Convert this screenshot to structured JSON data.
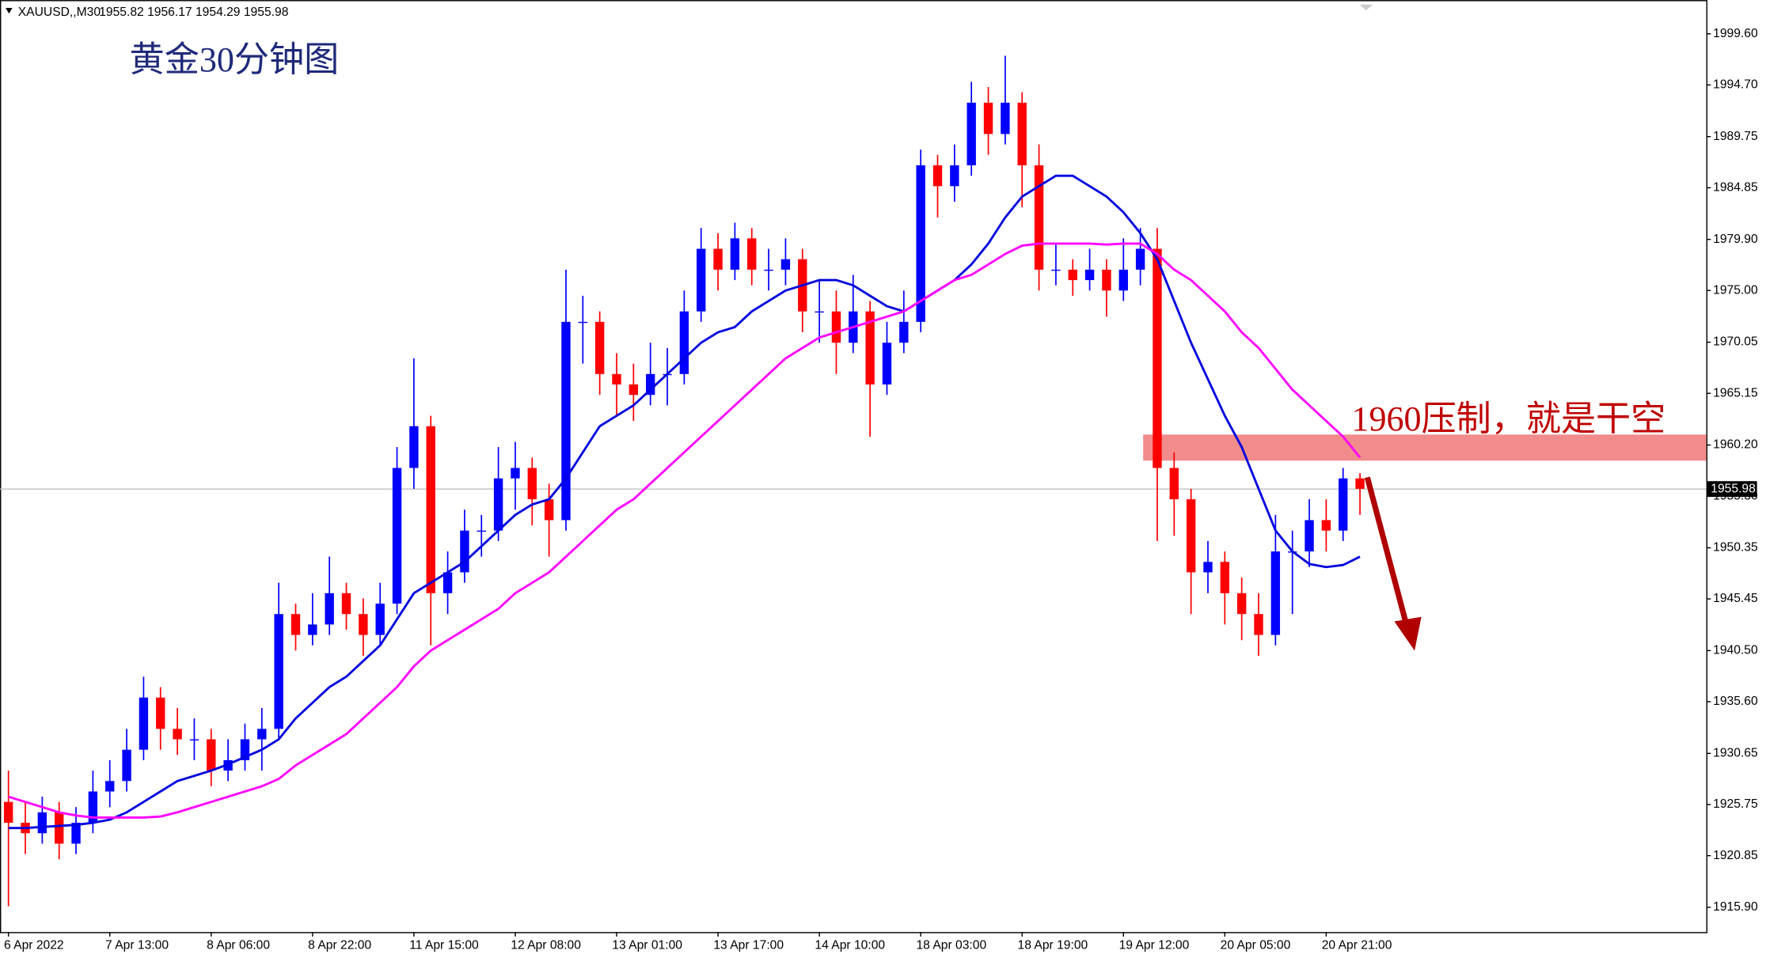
{
  "header": {
    "symbol": "XAUUSD,,M30",
    "quote": "1955.82 1956.17 1954.29 1955.98"
  },
  "chart_data": {
    "type": "candlestick",
    "title": "黄金30分钟图",
    "annotation": "1960压制，就是干空",
    "up_color": "#0000ff",
    "down_color": "#ff0000",
    "current_price": 1955.98,
    "zone": [
      1958.7,
      1961.2
    ],
    "zone_color": "#f28b8b",
    "ylim": [
      1913.53,
      2002.51
    ],
    "yticks": [
      {
        "value": 1999.6,
        "label": "1999.60"
      },
      {
        "value": 1994.7,
        "label": "1994.70"
      },
      1989.75,
      1984.85,
      {
        "value": 1979.9,
        "label": "1979.90"
      },
      {
        "value": 1975,
        "label": "1975.00"
      },
      1970.05,
      1965.15,
      {
        "value": 1960.2,
        "label": "1960.20"
      },
      {
        "value": 1955.3,
        "label": "1955.30"
      },
      1950.35,
      1945.45,
      {
        "value": 1940.5,
        "label": "1940.50"
      },
      {
        "value": 1935.6,
        "label": "1935.60"
      },
      1930.65,
      1925.75,
      1920.85,
      {
        "value": 1915.9,
        "label": "1915.90"
      }
    ],
    "categories": [
      "6 Apr 2022",
      null,
      null,
      null,
      null,
      null,
      "7 Apr 13:00",
      null,
      null,
      null,
      null,
      null,
      "8 Apr 06:00",
      null,
      null,
      null,
      null,
      null,
      "8 Apr 22:00",
      null,
      null,
      null,
      null,
      null,
      "11 Apr 15:00",
      null,
      null,
      null,
      null,
      null,
      "12 Apr 08:00",
      null,
      null,
      null,
      null,
      null,
      "13 Apr 01:00",
      null,
      null,
      null,
      null,
      null,
      "13 Apr 17:00",
      null,
      null,
      null,
      null,
      null,
      "14 Apr 10:00",
      null,
      null,
      null,
      null,
      null,
      "18 Apr 03:00",
      null,
      null,
      null,
      null,
      null,
      "18 Apr 19:00",
      null,
      null,
      null,
      null,
      null,
      "19 Apr 12:00",
      null,
      null,
      null,
      null,
      null,
      "20 Apr 05:00",
      null,
      null,
      null,
      null,
      null,
      "20 Apr 21:00",
      null,
      null
    ],
    "candles": [
      [
        1926,
        1929,
        1916,
        1924
      ],
      [
        1924,
        1926,
        1921,
        1923
      ],
      [
        1923,
        1926.5,
        1922,
        1925
      ],
      [
        1925,
        1926,
        1920.5,
        1922
      ],
      [
        1922,
        1925.5,
        1921,
        1924
      ],
      [
        1924,
        1929,
        1923,
        1927
      ],
      [
        1927,
        1930,
        1925.5,
        1928
      ],
      [
        1928,
        1933,
        1927,
        1931
      ],
      [
        1931,
        1938,
        1930,
        1936
      ],
      [
        1936,
        1937,
        1931,
        1933
      ],
      [
        1933,
        1935,
        1930.5,
        1932
      ],
      [
        1932,
        1934,
        1930,
        1932
      ],
      [
        1932,
        1933,
        1927.5,
        1929
      ],
      [
        1929,
        1932,
        1928,
        1930
      ],
      [
        1930,
        1933.5,
        1929,
        1932
      ],
      [
        1932,
        1935,
        1929,
        1933
      ],
      [
        1933,
        1947,
        1932,
        1944
      ],
      [
        1944,
        1945,
        1940.5,
        1942
      ],
      [
        1942,
        1946,
        1941,
        1943
      ],
      [
        1943,
        1949.5,
        1942,
        1946
      ],
      [
        1946,
        1947,
        1942.5,
        1944
      ],
      [
        1944,
        1945.5,
        1940,
        1942
      ],
      [
        1942,
        1947,
        1941,
        1945
      ],
      [
        1945,
        1960,
        1944,
        1958
      ],
      [
        1958,
        1968.5,
        1956,
        1962
      ],
      [
        1962,
        1963,
        1941,
        1946
      ],
      [
        1946,
        1950,
        1944,
        1948
      ],
      [
        1948,
        1954,
        1947,
        1952
      ],
      [
        1952,
        1953.5,
        1949.5,
        1952
      ],
      [
        1952,
        1960,
        1951,
        1957
      ],
      [
        1957,
        1960.5,
        1954,
        1958
      ],
      [
        1958,
        1959,
        1952.5,
        1955
      ],
      [
        1955,
        1956.5,
        1949.5,
        1953
      ],
      [
        1953,
        1977,
        1952,
        1972
      ],
      [
        1972,
        1974.5,
        1968,
        1972
      ],
      [
        1972,
        1973,
        1965,
        1967
      ],
      [
        1967,
        1969,
        1963,
        1966
      ],
      [
        1966,
        1968,
        1962.5,
        1965
      ],
      [
        1965,
        1970,
        1964,
        1967
      ],
      [
        1967,
        1969.5,
        1964,
        1967
      ],
      [
        1967,
        1975,
        1966,
        1973
      ],
      [
        1973,
        1981,
        1972,
        1979
      ],
      [
        1979,
        1980.5,
        1975,
        1977
      ],
      [
        1977,
        1981.5,
        1976,
        1980
      ],
      [
        1980,
        1981,
        1975.5,
        1977
      ],
      [
        1977,
        1979,
        1975,
        1977
      ],
      [
        1977,
        1980,
        1975.5,
        1978
      ],
      [
        1978,
        1979,
        1971,
        1973
      ],
      [
        1973,
        1976,
        1970,
        1973
      ],
      [
        1973,
        1975,
        1967,
        1970
      ],
      [
        1970,
        1976.5,
        1969,
        1973
      ],
      [
        1973,
        1974,
        1961,
        1966
      ],
      [
        1966,
        1972,
        1965,
        1970
      ],
      [
        1970,
        1975,
        1969,
        1972
      ],
      [
        1972,
        1988.5,
        1971,
        1987
      ],
      [
        1987,
        1988,
        1982,
        1985
      ],
      [
        1985,
        1989,
        1983.5,
        1987
      ],
      [
        1987,
        1995,
        1986,
        1993
      ],
      [
        1993,
        1994.5,
        1988,
        1990
      ],
      [
        1990,
        1997.5,
        1989,
        1993
      ],
      [
        1993,
        1994,
        1983,
        1987
      ],
      [
        1987,
        1989,
        1975,
        1977
      ],
      [
        1977,
        1979.5,
        1975.5,
        1977
      ],
      [
        1977,
        1978,
        1974.5,
        1976
      ],
      [
        1976,
        1979,
        1975,
        1977
      ],
      [
        1977,
        1978,
        1972.5,
        1975
      ],
      [
        1975,
        1980,
        1974,
        1977
      ],
      [
        1977,
        1981,
        1975.5,
        1979
      ],
      [
        1979,
        1981,
        1951,
        1958
      ],
      [
        1958,
        1959.5,
        1951.5,
        1955
      ],
      [
        1955,
        1956,
        1944,
        1948
      ],
      [
        1948,
        1951,
        1946,
        1949
      ],
      [
        1949,
        1950,
        1943,
        1946
      ],
      [
        1946,
        1947.5,
        1941.5,
        1944
      ],
      [
        1944,
        1946,
        1940,
        1942
      ],
      [
        1942,
        1953.5,
        1941,
        1950
      ],
      [
        1950,
        1952,
        1944,
        1950
      ],
      [
        1950,
        1955,
        1948.5,
        1953
      ],
      [
        1953,
        1955,
        1950,
        1952
      ],
      [
        1952,
        1958,
        1951,
        1957
      ],
      [
        1957,
        1957.5,
        1953.5,
        1956
      ]
    ],
    "lines": [
      {
        "color": "#0000e0",
        "values": [
          1923.5,
          1923.5,
          1923.6,
          1923.7,
          1923.8,
          1924,
          1924.3,
          1925,
          1926,
          1927,
          1928,
          1928.5,
          1929,
          1929.6,
          1930.3,
          1931,
          1932,
          1934,
          1935.5,
          1937,
          1938,
          1939.5,
          1941,
          1943.5,
          1946,
          1947,
          1948,
          1949,
          1950.5,
          1952,
          1953.5,
          1954.5,
          1955,
          1957,
          1959.5,
          1962,
          1963,
          1964,
          1965.5,
          1967,
          1968.5,
          1970,
          1971,
          1971.5,
          1973,
          1974,
          1975,
          1975.5,
          1976,
          1976,
          1975.5,
          1974.5,
          1973.5,
          1973,
          1974,
          1975,
          1976,
          1977.5,
          1979.5,
          1982,
          1984,
          1985,
          1986,
          1986,
          1985,
          1984,
          1982.5,
          1980.5,
          1978,
          1974,
          1970,
          1966.5,
          1963,
          1960,
          1956,
          1952,
          1950,
          1948.8,
          1948.5,
          1948.7,
          1949.5
        ]
      },
      {
        "color": "#ff00ff",
        "values": [
          1926.5,
          1926,
          1925.5,
          1925,
          1924.7,
          1924.5,
          1924.5,
          1924.5,
          1924.5,
          1924.6,
          1925,
          1925.5,
          1926,
          1926.5,
          1927,
          1927.5,
          1928.2,
          1929.5,
          1930.5,
          1931.5,
          1932.5,
          1934,
          1935.5,
          1937,
          1939,
          1940.5,
          1941.5,
          1942.5,
          1943.5,
          1944.5,
          1946,
          1947,
          1948,
          1949.5,
          1951,
          1952.5,
          1954,
          1955,
          1956.5,
          1958,
          1959.5,
          1961,
          1962.5,
          1964,
          1965.5,
          1967,
          1968.5,
          1969.5,
          1970.5,
          1971,
          1971.5,
          1972,
          1972.5,
          1973,
          1974,
          1975,
          1976,
          1976.5,
          1977.5,
          1978.5,
          1979.3,
          1979.5,
          1979.5,
          1979.5,
          1979.5,
          1979.4,
          1979.5,
          1979.5,
          1978.5,
          1977,
          1976,
          1974.5,
          1973,
          1971,
          1969.5,
          1967.5,
          1965.5,
          1964,
          1962.5,
          1961,
          1959
        ]
      }
    ]
  }
}
